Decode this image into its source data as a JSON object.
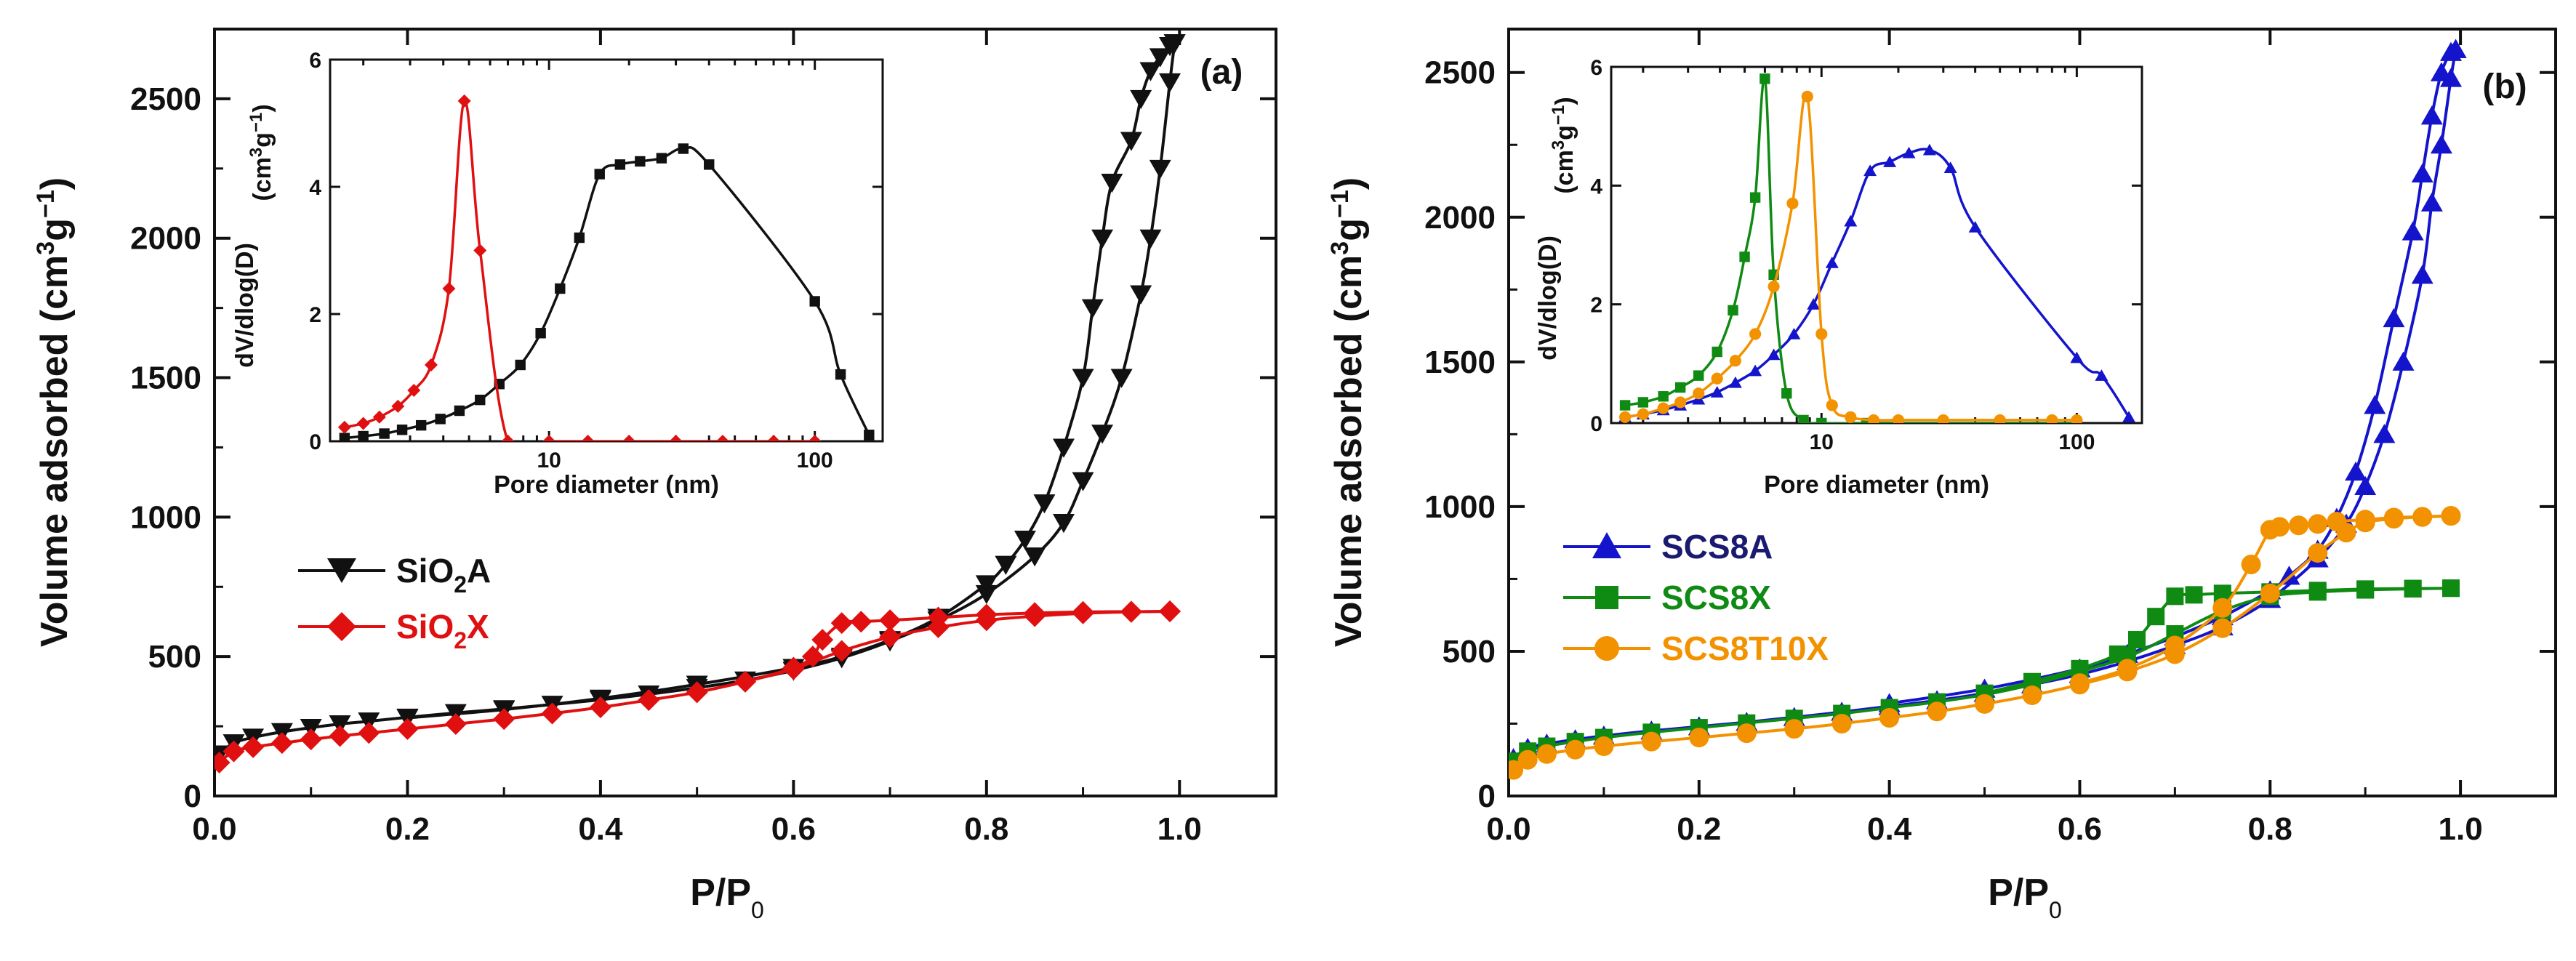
{
  "colors": {
    "black": "#111111",
    "red": "#e01010",
    "blue": "#1414cc",
    "green": "#0f8a12",
    "orange": "#f39200",
    "legend_blue_text": "#1a1a70"
  },
  "chart_data": [
    {
      "id": "a",
      "type": "line",
      "panel_label": "(a)",
      "title": "",
      "xlabel": "P/P",
      "xlabel_sub": "0",
      "ylabel": "Volume adsorbed (cm",
      "ylabel_sup": "3",
      "ylabel_mid": "g",
      "ylabel_sup2": "−1",
      "ylabel_end": ")",
      "xlim": [
        0.0,
        1.1
      ],
      "ylim": [
        0,
        2750
      ],
      "xticks": [
        0.0,
        0.2,
        0.4,
        0.6,
        0.8,
        1.0
      ],
      "xtick_labels": [
        "0.0",
        "0.2",
        "0.4",
        "0.6",
        "0.8",
        "1.0"
      ],
      "yticks": [
        0,
        500,
        1000,
        1500,
        2000,
        2500
      ],
      "ytick_labels": [
        "0",
        "500",
        "1000",
        "1500",
        "2000",
        "2500"
      ],
      "legend_position": "middle-left",
      "series": [
        {
          "name": "SiO2A",
          "label_main": "SiO",
          "label_sub": "2",
          "label_end": "A",
          "color": "#111111",
          "marker": "triangle-down",
          "adsorption": {
            "x": [
              0.005,
              0.02,
              0.04,
              0.07,
              0.1,
              0.13,
              0.16,
              0.2,
              0.25,
              0.3,
              0.35,
              0.4,
              0.45,
              0.5,
              0.55,
              0.6,
              0.65,
              0.7,
              0.75,
              0.8,
              0.85,
              0.88,
              0.9,
              0.92,
              0.94,
              0.96,
              0.97,
              0.98,
              0.99,
              0.995
            ],
            "y": [
              150,
              190,
              210,
              230,
              245,
              258,
              268,
              282,
              298,
              312,
              328,
              345,
              365,
              388,
              415,
              450,
              495,
              555,
              630,
              725,
              860,
              980,
              1130,
              1300,
              1500,
              1800,
              2000,
              2250,
              2560,
              2700
            ]
          },
          "desorption": {
            "x": [
              0.995,
              0.99,
              0.98,
              0.97,
              0.96,
              0.95,
              0.93,
              0.92,
              0.91,
              0.9,
              0.88,
              0.86,
              0.84,
              0.82,
              0.8,
              0.75,
              0.7,
              0.65,
              0.6,
              0.5,
              0.4,
              0.3,
              0.2
            ],
            "y": [
              2700,
              2690,
              2650,
              2600,
              2500,
              2350,
              2200,
              2000,
              1750,
              1500,
              1250,
              1050,
              920,
              830,
              760,
              640,
              560,
              500,
              460,
              400,
              350,
              310,
              280
            ]
          }
        },
        {
          "name": "SiO2X",
          "label_main": "SiO",
          "label_sub": "2",
          "label_end": "X",
          "color": "#e01010",
          "marker": "diamond",
          "adsorption": {
            "x": [
              0.005,
              0.02,
              0.04,
              0.07,
              0.1,
              0.13,
              0.16,
              0.2,
              0.25,
              0.3,
              0.35,
              0.4,
              0.45,
              0.5,
              0.55,
              0.6,
              0.65,
              0.7,
              0.75,
              0.8,
              0.85,
              0.9,
              0.95,
              0.99
            ],
            "y": [
              120,
              160,
              175,
              190,
              203,
              215,
              226,
              240,
              258,
              276,
              296,
              318,
              344,
              372,
              410,
              455,
              520,
              570,
              605,
              630,
              645,
              655,
              660,
              662
            ]
          },
          "desorption": {
            "x": [
              0.99,
              0.95,
              0.9,
              0.85,
              0.8,
              0.75,
              0.7,
              0.67,
              0.65,
              0.63,
              0.62,
              0.6,
              0.55,
              0.5
            ],
            "y": [
              662,
              661,
              660,
              656,
              650,
              640,
              630,
              625,
              620,
              560,
              500,
              460,
              410,
              372
            ]
          }
        }
      ],
      "inset": {
        "xlabel": "Pore diameter (nm)",
        "ylabel": "dV/dlog(D)",
        "ylabel_unit": "(cm",
        "ylabel_unit_sup": "3",
        "ylabel_unit_mid": "g",
        "ylabel_unit_sup2": "−1",
        "ylabel_unit_end": ")",
        "xscale": "log",
        "xlim": [
          1.5,
          180
        ],
        "ylim": [
          0,
          6
        ],
        "xticks": [
          10,
          100
        ],
        "xtick_labels": [
          "10",
          "100"
        ],
        "yticks": [
          0,
          2,
          4,
          6
        ],
        "ytick_labels": [
          "0",
          "2",
          "4",
          "6"
        ],
        "series": [
          {
            "name": "SiO2A",
            "color": "#111111",
            "marker": "square",
            "x": [
              1.7,
              2.0,
              2.4,
              2.8,
              3.3,
              3.9,
              4.6,
              5.5,
              6.5,
              7.8,
              9.3,
              11.0,
              13.0,
              15.5,
              18.5,
              22.0,
              26.5,
              32.0,
              40.0,
              100.0,
              125.0,
              160.0
            ],
            "y": [
              0.05,
              0.08,
              0.12,
              0.18,
              0.25,
              0.35,
              0.48,
              0.65,
              0.9,
              1.2,
              1.7,
              2.4,
              3.2,
              4.2,
              4.35,
              4.4,
              4.45,
              4.6,
              4.35,
              2.2,
              1.05,
              0.1
            ]
          },
          {
            "name": "SiO2X",
            "color": "#e01010",
            "marker": "diamond",
            "x": [
              1.7,
              2.0,
              2.3,
              2.7,
              3.1,
              3.6,
              4.2,
              4.8,
              5.5,
              7.0,
              10.0,
              14.0,
              20.0,
              30.0,
              45.0,
              70.0,
              100.0
            ],
            "y": [
              0.22,
              0.28,
              0.38,
              0.55,
              0.8,
              1.2,
              2.4,
              5.35,
              3.0,
              0.0,
              0.0,
              0.0,
              0.0,
              0.0,
              0.0,
              0.0,
              0.0
            ]
          }
        ]
      }
    },
    {
      "id": "b",
      "type": "line",
      "panel_label": "(b)",
      "title": "",
      "xlabel": "P/P",
      "xlabel_sub": "0",
      "ylabel": "Volume adsorbed (cm",
      "ylabel_sup": "3",
      "ylabel_mid": "g",
      "ylabel_sup2": "−1",
      "ylabel_end": ")",
      "xlim": [
        0.0,
        1.1
      ],
      "ylim": [
        0,
        2650
      ],
      "xticks": [
        0.0,
        0.2,
        0.4,
        0.6,
        0.8,
        1.0
      ],
      "xtick_labels": [
        "0.0",
        "0.2",
        "0.4",
        "0.6",
        "0.8",
        "1.0"
      ],
      "yticks": [
        0,
        500,
        1000,
        1500,
        2000,
        2500
      ],
      "ytick_labels": [
        "0",
        "500",
        "1000",
        "1500",
        "2000",
        "2500"
      ],
      "legend_position": "middle-left",
      "series": [
        {
          "name": "SCS8A",
          "color": "#1414cc",
          "text_color": "#1a1a70",
          "marker": "triangle-up",
          "adsorption": {
            "x": [
              0.005,
              0.02,
              0.04,
              0.07,
              0.1,
              0.15,
              0.2,
              0.25,
              0.3,
              0.35,
              0.4,
              0.45,
              0.5,
              0.55,
              0.6,
              0.65,
              0.7,
              0.75,
              0.8,
              0.85,
              0.88,
              0.9,
              0.92,
              0.94,
              0.96,
              0.97,
              0.98,
              0.99,
              0.995
            ],
            "y": [
              130,
              165,
              180,
              195,
              208,
              225,
              240,
              255,
              272,
              290,
              310,
              330,
              355,
              385,
              420,
              465,
              520,
              585,
              680,
              820,
              940,
              1070,
              1250,
              1500,
              1800,
              2050,
              2250,
              2480,
              2580
            ]
          },
          "desorption": {
            "x": [
              0.995,
              0.99,
              0.98,
              0.97,
              0.96,
              0.95,
              0.93,
              0.91,
              0.89,
              0.87,
              0.85,
              0.82,
              0.8,
              0.75,
              0.7,
              0.65,
              0.6,
              0.5,
              0.4
            ],
            "y": [
              2580,
              2570,
              2500,
              2350,
              2150,
              1950,
              1650,
              1350,
              1120,
              960,
              850,
              760,
              710,
              620,
              550,
              490,
              440,
              370,
              320
            ]
          }
        },
        {
          "name": "SCS8X",
          "color": "#0f8a12",
          "text_color": "#0f8a12",
          "marker": "square",
          "adsorption": {
            "x": [
              0.005,
              0.02,
              0.04,
              0.07,
              0.1,
              0.15,
              0.2,
              0.25,
              0.3,
              0.35,
              0.4,
              0.45,
              0.5,
              0.55,
              0.6,
              0.65,
              0.7,
              0.75,
              0.8,
              0.85,
              0.9,
              0.95,
              0.99
            ],
            "y": [
              120,
              155,
              172,
              188,
              202,
              220,
              236,
              252,
              268,
              285,
              305,
              325,
              350,
              385,
              430,
              480,
              560,
              640,
              690,
              705,
              712,
              716,
              718
            ]
          },
          "desorption": {
            "x": [
              0.99,
              0.95,
              0.9,
              0.85,
              0.8,
              0.75,
              0.72,
              0.7,
              0.68,
              0.66,
              0.64,
              0.6,
              0.55,
              0.5
            ],
            "y": [
              718,
              717,
              715,
              710,
              705,
              700,
              695,
              690,
              620,
              540,
              490,
              440,
              395,
              355
            ]
          }
        },
        {
          "name": "SCS8T10X",
          "color": "#f39200",
          "text_color": "#f39200",
          "marker": "circle",
          "adsorption": {
            "x": [
              0.005,
              0.02,
              0.04,
              0.07,
              0.1,
              0.15,
              0.2,
              0.25,
              0.3,
              0.35,
              0.4,
              0.45,
              0.5,
              0.55,
              0.6,
              0.65,
              0.7,
              0.75,
              0.8,
              0.85,
              0.88,
              0.9,
              0.93,
              0.96,
              0.99
            ],
            "y": [
              90,
              125,
              145,
              160,
              172,
              188,
              202,
              217,
              232,
              250,
              270,
              292,
              318,
              348,
              385,
              430,
              490,
              580,
              700,
              840,
              910,
              945,
              958,
              964,
              968
            ]
          },
          "desorption": {
            "x": [
              0.99,
              0.96,
              0.93,
              0.9,
              0.87,
              0.85,
              0.83,
              0.81,
              0.8,
              0.78,
              0.75,
              0.7,
              0.65,
              0.6
            ],
            "y": [
              968,
              965,
              962,
              955,
              948,
              940,
              935,
              930,
              920,
              800,
              650,
              520,
              440,
              390
            ]
          }
        }
      ],
      "inset": {
        "xlabel": "Pore diameter (nm)",
        "ylabel": "dV/dlog(D)",
        "ylabel_unit": "(cm",
        "ylabel_unit_sup": "3",
        "ylabel_unit_mid": "g",
        "ylabel_unit_sup2": "−1",
        "ylabel_unit_end": ")",
        "xscale": "log",
        "xlim": [
          1.5,
          180
        ],
        "ylim": [
          0,
          6
        ],
        "xticks": [
          10,
          100
        ],
        "xtick_labels": [
          "10",
          "100"
        ],
        "yticks": [
          0,
          2,
          4,
          6
        ],
        "ytick_labels": [
          "0",
          "2",
          "4",
          "6"
        ],
        "series": [
          {
            "name": "SCS8A",
            "color": "#1414cc",
            "marker": "triangle-up",
            "x": [
              1.7,
              2.0,
              2.4,
              2.8,
              3.3,
              3.9,
              4.6,
              5.5,
              6.5,
              7.8,
              9.3,
              11.0,
              13.0,
              15.5,
              18.5,
              22.0,
              26.5,
              32.0,
              40.0,
              100.0,
              125.0,
              160.0
            ],
            "y": [
              0.1,
              0.15,
              0.22,
              0.3,
              0.4,
              0.52,
              0.68,
              0.88,
              1.15,
              1.5,
              2.0,
              2.7,
              3.4,
              4.25,
              4.4,
              4.55,
              4.6,
              4.3,
              3.3,
              1.1,
              0.8,
              0.1
            ]
          },
          {
            "name": "SCS8X",
            "color": "#0f8a12",
            "marker": "square",
            "x": [
              1.7,
              2.0,
              2.4,
              2.8,
              3.3,
              3.9,
              4.5,
              5.0,
              5.5,
              6.0,
              6.5,
              7.3,
              8.5,
              10.0,
              15.0,
              20.0,
              30.0,
              50.0,
              100.0
            ],
            "y": [
              0.3,
              0.35,
              0.45,
              0.6,
              0.8,
              1.2,
              1.9,
              2.8,
              3.8,
              5.8,
              2.5,
              0.5,
              0.05,
              0.0,
              0.0,
              0.0,
              0.0,
              0.0,
              0.0
            ]
          },
          {
            "name": "SCS8T10X",
            "color": "#f39200",
            "marker": "circle",
            "x": [
              1.7,
              2.0,
              2.4,
              2.8,
              3.3,
              3.9,
              4.6,
              5.5,
              6.5,
              7.7,
              8.8,
              10.0,
              11.0,
              13.0,
              16.0,
              20.0,
              30.0,
              50.0,
              80.0,
              100.0
            ],
            "y": [
              0.1,
              0.15,
              0.25,
              0.35,
              0.5,
              0.75,
              1.05,
              1.5,
              2.3,
              3.7,
              5.5,
              1.5,
              0.3,
              0.1,
              0.05,
              0.05,
              0.05,
              0.05,
              0.05,
              0.05
            ]
          }
        ]
      }
    }
  ]
}
